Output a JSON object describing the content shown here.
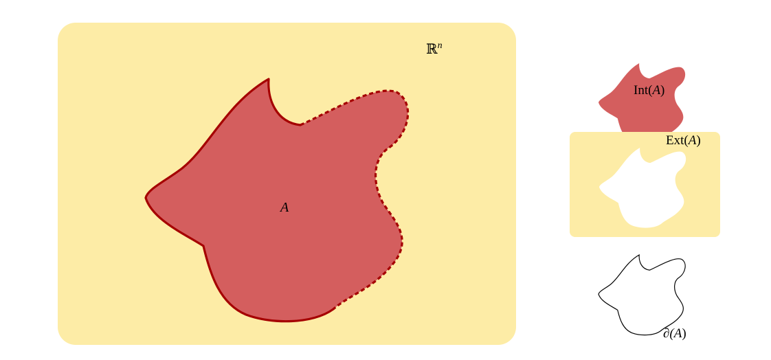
{
  "main_diagram": {
    "space_label": "ℝ",
    "space_exponent": "n",
    "set_label": "A"
  },
  "interior_panel": {
    "label_prefix": "Int(",
    "label_var": "A",
    "label_suffix": ")"
  },
  "exterior_panel": {
    "label_prefix": "Ext(",
    "label_var": "A",
    "label_suffix": ")"
  },
  "boundary_panel": {
    "label_prefix": "∂(",
    "label_var": "A",
    "label_suffix": ")"
  },
  "colors": {
    "space_fill": "#FDECA6",
    "set_fill": "#D45E5E",
    "set_boundary": "#A50000",
    "boundary_outline": "#000000"
  }
}
